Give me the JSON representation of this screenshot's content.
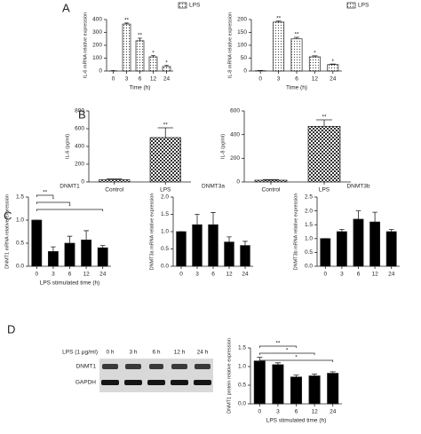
{
  "panel_labels": [
    "A",
    "B",
    "C",
    "D"
  ],
  "blot": {
    "treatment": "LPS (1 μg/ml)",
    "lanes": [
      "0 h",
      "3 h",
      "6 h",
      "12 h",
      "24 h"
    ],
    "rows": [
      "DNMT1",
      "GAPDH"
    ]
  },
  "chart_data": [
    {
      "type": "bar",
      "xlabel": "Time (h)",
      "ylabel": "IL-6 mRNA relative expression",
      "categories": [
        "0",
        "3",
        "6",
        "12",
        "24"
      ],
      "series": [
        {
          "name": "LPS",
          "color": "#ffffff",
          "pattern": "dots",
          "values": [
            1,
            365,
            235,
            110,
            35
          ],
          "errors": [
            2,
            8,
            20,
            10,
            8
          ]
        }
      ],
      "annotations": [
        null,
        "**",
        "**",
        "*",
        "*"
      ],
      "annotation_style": "above",
      "legend": "top-right",
      "ylim": [
        0,
        400
      ],
      "yticks": [
        0,
        100,
        200,
        300,
        400
      ]
    },
    {
      "type": "bar",
      "xlabel": "Time (h)",
      "ylabel": "IL-8 mRNA relative expression",
      "categories": [
        "0",
        "3",
        "6",
        "12",
        "24"
      ],
      "series": [
        {
          "name": "LPS",
          "color": "#ffffff",
          "pattern": "dots",
          "values": [
            1,
            190,
            125,
            55,
            25
          ],
          "errors": [
            1,
            4,
            6,
            4,
            2
          ]
        }
      ],
      "annotations": [
        null,
        "**",
        "**",
        "*",
        "*"
      ],
      "annotation_style": "above",
      "legend": "top-right",
      "ylim": [
        0,
        200
      ],
      "yticks": [
        0,
        50,
        100,
        150,
        200
      ]
    },
    {
      "type": "bar",
      "ylabel": "IL-6 (pg/ml)",
      "categories": [
        "Control",
        "LPS"
      ],
      "series": [
        {
          "color": "#ffffff",
          "pattern": "checker",
          "values": [
            25,
            500
          ],
          "errors": [
            8,
            110
          ]
        }
      ],
      "annotations": [
        null,
        "**"
      ],
      "annotation_style": "above",
      "ylim": [
        0,
        800
      ],
      "yticks": [
        0,
        200,
        400,
        600,
        800
      ]
    },
    {
      "type": "bar",
      "ylabel": "IL-8 (pg/ml)",
      "categories": [
        "Control",
        "LPS"
      ],
      "series": [
        {
          "color": "#ffffff",
          "pattern": "checker",
          "values": [
            15,
            470
          ],
          "errors": [
            5,
            55
          ]
        }
      ],
      "annotations": [
        null,
        "**"
      ],
      "annotation_style": "above",
      "ylim": [
        0,
        600
      ],
      "yticks": [
        0,
        200,
        400,
        600
      ]
    },
    {
      "type": "bar",
      "title": "DNMT1",
      "xlabel": "LPS stimulated time (h)",
      "ylabel": "DNMT1 mRNA relative expression",
      "categories": [
        "0",
        "3",
        "6",
        "12",
        "24"
      ],
      "series": [
        {
          "color": "#000000",
          "values": [
            1.0,
            0.32,
            0.5,
            0.57,
            0.4
          ],
          "errors": [
            0,
            0.1,
            0.15,
            0.2,
            0.05
          ]
        }
      ],
      "annotations": [
        null,
        "**",
        "*",
        null,
        "*"
      ],
      "annotation_style": "bracket",
      "ylim": [
        0,
        1.5
      ],
      "yticks": [
        {
          "value": 0,
          "label": "0.0"
        },
        0.5,
        {
          "value": 1,
          "label": "1.0"
        },
        1.5
      ]
    },
    {
      "type": "bar",
      "title": "DNMT3a",
      "ylabel": "DNMT3a mRNA relative expression",
      "categories": [
        "0",
        "3",
        "6",
        "12",
        "24"
      ],
      "series": [
        {
          "color": "#000000",
          "values": [
            1.0,
            1.2,
            1.2,
            0.7,
            0.6
          ],
          "errors": [
            0,
            0.3,
            0.35,
            0.15,
            0.12
          ]
        }
      ],
      "ylim": [
        0,
        2
      ],
      "yticks": [
        {
          "value": 0,
          "label": "0.0"
        },
        0.5,
        {
          "value": 1,
          "label": "1.0"
        },
        1.5,
        {
          "value": 2,
          "label": "2.0"
        }
      ]
    },
    {
      "type": "bar",
      "title": "DNMT3b",
      "ylabel": "DNMT3b mRNA relative expression",
      "categories": [
        "0",
        "3",
        "6",
        "12",
        "24"
      ],
      "series": [
        {
          "color": "#000000",
          "values": [
            1.0,
            1.25,
            1.7,
            1.6,
            1.25
          ],
          "errors": [
            0,
            0.08,
            0.3,
            0.35,
            0.08
          ]
        }
      ],
      "ylim": [
        0,
        2.5
      ],
      "yticks": [
        {
          "value": 0,
          "label": "0.0"
        },
        0.5,
        {
          "value": 1,
          "label": "1.0"
        },
        1.5,
        {
          "value": 2,
          "label": "2.0"
        },
        2.5
      ]
    },
    {
      "type": "bar",
      "xlabel": "LPS stimulated time (h)",
      "ylabel": "DNMT1 protein relative expression",
      "categories": [
        "0",
        "3",
        "6",
        "12",
        "24"
      ],
      "series": [
        {
          "color": "#000000",
          "values": [
            1.15,
            1.05,
            0.72,
            0.75,
            0.82
          ],
          "errors": [
            0.1,
            0.05,
            0.05,
            0.05,
            0.04
          ]
        }
      ],
      "annotations": [
        null,
        null,
        "**",
        "*",
        "*"
      ],
      "annotation_style": "bracket",
      "ylim": [
        0,
        1.5
      ],
      "yticks": [
        {
          "value": 0,
          "label": "0.0"
        },
        0.5,
        {
          "value": 1,
          "label": "1.0"
        },
        1.5
      ]
    }
  ]
}
